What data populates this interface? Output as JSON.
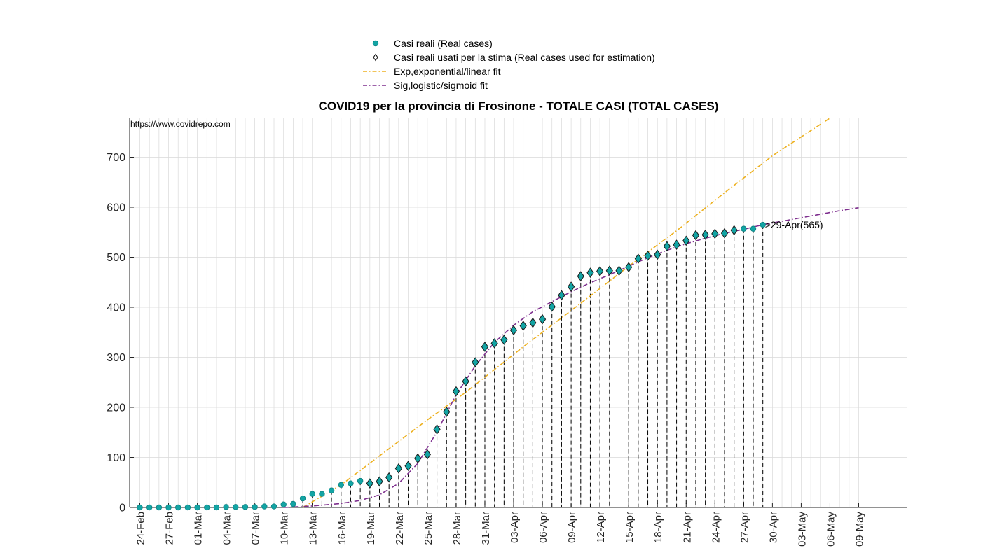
{
  "source_text": "https://www.covidrepo.com",
  "legend": {
    "items": [
      {
        "label": "Casi reali (Real cases)",
        "color": "#13a4a4",
        "symbol": "dot"
      },
      {
        "label": "Casi reali usati per la stima (Real cases used for estimation)",
        "color": "#000000",
        "symbol": "diamond"
      },
      {
        "label": "Exp,exponential/linear fit",
        "color": "#edb120",
        "symbol": "dashdot"
      },
      {
        "label": "Sig,logistic/sigmoid fit",
        "color": "#7e2f8e",
        "symbol": "dashdot"
      }
    ]
  },
  "chart_data": {
    "type": "scatter",
    "title": "COVID19 per la provincia di Frosinone - TOTALE CASI (TOTAL CASES)",
    "xlabel": "",
    "ylabel": "",
    "ylim": [
      0,
      780
    ],
    "yticks": [
      0,
      100,
      200,
      300,
      400,
      500,
      600,
      700
    ],
    "x_start": "24-Feb",
    "x_end": "09-May",
    "xtick_labels": [
      "24-Feb",
      "27-Feb",
      "01-Mar",
      "04-Mar",
      "07-Mar",
      "10-Mar",
      "13-Mar",
      "16-Mar",
      "19-Mar",
      "22-Mar",
      "25-Mar",
      "28-Mar",
      "31-Mar",
      "03-Apr",
      "06-Apr",
      "09-Apr",
      "12-Apr",
      "15-Apr",
      "18-Apr",
      "21-Apr",
      "24-Apr",
      "27-Apr",
      "30-Apr",
      "03-May",
      "06-May",
      "09-May"
    ],
    "grid": true,
    "legend_position": "top-center",
    "colors": {
      "real": "#13a4a4",
      "estimation_edge": "#1a1a1a",
      "exp_fit": "#edb120",
      "sig_fit": "#7e2f8e",
      "grid": "#d9d9d9",
      "dashed_drop": "#000000"
    },
    "series": [
      {
        "name": "Casi reali (Real cases)",
        "kind": "dots",
        "dates": [
          "24-Feb",
          "25-Feb",
          "26-Feb",
          "27-Feb",
          "28-Feb",
          "29-Feb",
          "01-Mar",
          "02-Mar",
          "03-Mar",
          "04-Mar",
          "05-Mar",
          "06-Mar",
          "07-Mar",
          "08-Mar",
          "09-Mar",
          "10-Mar",
          "11-Mar",
          "12-Mar",
          "13-Mar",
          "14-Mar",
          "15-Mar",
          "16-Mar",
          "17-Mar",
          "18-Mar",
          "19-Mar",
          "20-Mar",
          "21-Mar",
          "22-Mar",
          "23-Mar",
          "24-Mar",
          "25-Mar",
          "26-Mar",
          "27-Mar",
          "28-Mar",
          "29-Mar",
          "30-Mar",
          "31-Mar",
          "01-Apr",
          "02-Apr",
          "03-Apr",
          "04-Apr",
          "05-Apr",
          "06-Apr",
          "07-Apr",
          "08-Apr",
          "09-Apr",
          "10-Apr",
          "11-Apr",
          "12-Apr",
          "13-Apr",
          "14-Apr",
          "15-Apr",
          "16-Apr",
          "17-Apr",
          "18-Apr",
          "19-Apr",
          "20-Apr",
          "21-Apr",
          "22-Apr",
          "23-Apr",
          "24-Apr",
          "25-Apr",
          "26-Apr",
          "27-Apr",
          "28-Apr",
          "29-Apr"
        ],
        "values": [
          0,
          0,
          0,
          0,
          0,
          0,
          0,
          0,
          0,
          1,
          1,
          1,
          1,
          2,
          2,
          6,
          7,
          18,
          27,
          27,
          34,
          45,
          48,
          53,
          48,
          52,
          60,
          78,
          83,
          98,
          106,
          156,
          191,
          232,
          252,
          290,
          321,
          328,
          335,
          354,
          363,
          369,
          376,
          401,
          424,
          441,
          462,
          469,
          472,
          473,
          473,
          480,
          497,
          503,
          505,
          522,
          525,
          533,
          544,
          545,
          547,
          548,
          554,
          557,
          557,
          565
        ]
      },
      {
        "name": "Casi reali usati per la stima (Real cases used for estimation)",
        "kind": "diamonds",
        "dates": [
          "19-Mar",
          "20-Mar",
          "21-Mar",
          "22-Mar",
          "23-Mar",
          "24-Mar",
          "25-Mar",
          "26-Mar",
          "27-Mar",
          "28-Mar",
          "29-Mar",
          "30-Mar",
          "31-Mar",
          "01-Apr",
          "02-Apr",
          "03-Apr",
          "04-Apr",
          "05-Apr",
          "06-Apr",
          "07-Apr",
          "08-Apr",
          "09-Apr",
          "10-Apr",
          "11-Apr",
          "12-Apr",
          "13-Apr",
          "14-Apr",
          "15-Apr",
          "16-Apr",
          "17-Apr",
          "18-Apr",
          "19-Apr",
          "20-Apr",
          "21-Apr",
          "22-Apr",
          "23-Apr",
          "24-Apr",
          "25-Apr",
          "26-Apr"
        ],
        "values": [
          48,
          52,
          60,
          78,
          83,
          98,
          106,
          156,
          191,
          232,
          252,
          290,
          321,
          328,
          335,
          354,
          363,
          369,
          376,
          401,
          424,
          441,
          462,
          469,
          472,
          473,
          473,
          480,
          497,
          503,
          505,
          522,
          525,
          533,
          544,
          545,
          547,
          548,
          554
        ]
      },
      {
        "name": "Exp,exponential/linear fit",
        "kind": "line",
        "points": [
          [
            "12-Mar",
            0
          ],
          [
            "16-Mar",
            45
          ],
          [
            "20-Mar",
            103
          ],
          [
            "25-Mar",
            175
          ],
          [
            "29-Mar",
            230
          ],
          [
            "04-Apr",
            321
          ],
          [
            "10-Apr",
            408
          ],
          [
            "15-Apr",
            482
          ],
          [
            "20-Apr",
            553
          ],
          [
            "25-Apr",
            629
          ],
          [
            "30-Apr",
            703
          ],
          [
            "06-May",
            778
          ]
        ]
      },
      {
        "name": "Sig,logistic/sigmoid fit",
        "kind": "line",
        "points": [
          [
            "10-Mar",
            0
          ],
          [
            "13-Mar",
            3
          ],
          [
            "16-Mar",
            8
          ],
          [
            "18-Mar",
            14
          ],
          [
            "20-Mar",
            25
          ],
          [
            "22-Mar",
            48
          ],
          [
            "24-Mar",
            88
          ],
          [
            "26-Mar",
            151
          ],
          [
            "28-Mar",
            225
          ],
          [
            "30-Mar",
            283
          ],
          [
            "01-Apr",
            330
          ],
          [
            "03-Apr",
            364
          ],
          [
            "05-Apr",
            391
          ],
          [
            "07-Apr",
            411
          ],
          [
            "09-Apr",
            431
          ],
          [
            "11-Apr",
            449
          ],
          [
            "13-Apr",
            465
          ],
          [
            "15-Apr",
            482
          ],
          [
            "17-Apr",
            499
          ],
          [
            "19-Apr",
            514
          ],
          [
            "21-Apr",
            527
          ],
          [
            "23-Apr",
            538
          ],
          [
            "25-Apr",
            548
          ],
          [
            "27-Apr",
            556
          ],
          [
            "29-Apr",
            565
          ],
          [
            "01-May",
            572
          ],
          [
            "03-May",
            579
          ],
          [
            "05-May",
            586
          ],
          [
            "07-May",
            593
          ],
          [
            "09-May",
            599
          ]
        ]
      }
    ],
    "annotations": [
      {
        "date": "29-Apr",
        "value": 565,
        "text": ">29-Apr(565)"
      }
    ]
  }
}
